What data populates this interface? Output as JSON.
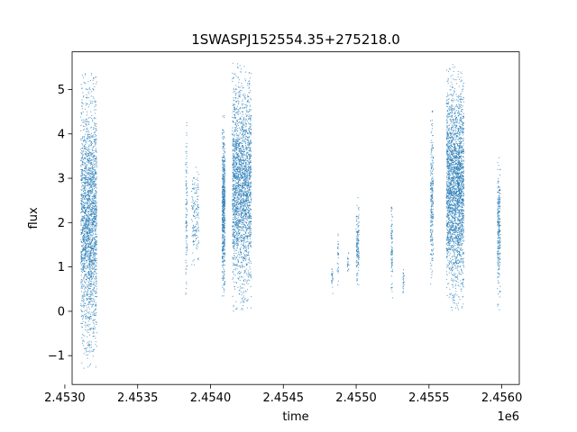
{
  "chart_data": {
    "type": "scatter",
    "title": "1SWASPJ152554.35+275218.0",
    "xlabel": "time",
    "ylabel": "flux",
    "x_offset_label": "1e6",
    "xlim": [
      2.45305,
      2.45612
    ],
    "ylim": [
      -1.65,
      5.85
    ],
    "x_ticks": [
      2.453,
      2.4535,
      2.454,
      2.4545,
      2.455,
      2.4555,
      2.456
    ],
    "x_tick_labels": [
      "2.4530",
      "2.4535",
      "2.4540",
      "2.4545",
      "2.4550",
      "2.4555",
      "2.4560"
    ],
    "y_ticks": [
      -1,
      0,
      1,
      2,
      3,
      4,
      5
    ],
    "y_tick_labels": [
      "−1",
      "0",
      "1",
      "2",
      "3",
      "4",
      "5"
    ],
    "grid": false,
    "marker_color": "#1f77b4",
    "series": [
      {
        "clusters": [
          {
            "x_start": 2.45311,
            "x_end": 2.45322,
            "y_min": -1.3,
            "y_max": 5.4,
            "n": 2200
          },
          {
            "x_start": 2.45383,
            "x_end": 2.45384,
            "y_min": 0.2,
            "y_max": 4.5,
            "n": 110
          },
          {
            "x_start": 2.45387,
            "x_end": 2.45392,
            "y_min": 0.8,
            "y_max": 3.4,
            "n": 160
          },
          {
            "x_start": 2.45408,
            "x_end": 2.4541,
            "y_min": 0.2,
            "y_max": 4.5,
            "n": 600
          },
          {
            "x_start": 2.45415,
            "x_end": 2.45428,
            "y_min": 0.0,
            "y_max": 5.6,
            "n": 2300
          },
          {
            "x_start": 2.45483,
            "x_end": 2.45484,
            "y_min": 0.4,
            "y_max": 1.1,
            "n": 25
          },
          {
            "x_start": 2.45487,
            "x_end": 2.45488,
            "y_min": 0.5,
            "y_max": 2.1,
            "n": 30
          },
          {
            "x_start": 2.45494,
            "x_end": 2.45495,
            "y_min": 0.7,
            "y_max": 1.4,
            "n": 20
          },
          {
            "x_start": 2.455,
            "x_end": 2.45502,
            "y_min": 0.5,
            "y_max": 2.6,
            "n": 140
          },
          {
            "x_start": 2.45524,
            "x_end": 2.45525,
            "y_min": 0.3,
            "y_max": 2.6,
            "n": 90
          },
          {
            "x_start": 2.45532,
            "x_end": 2.45533,
            "y_min": 0.3,
            "y_max": 1.1,
            "n": 25
          },
          {
            "x_start": 2.45551,
            "x_end": 2.45553,
            "y_min": 0.5,
            "y_max": 4.6,
            "n": 250
          },
          {
            "x_start": 2.45562,
            "x_end": 2.45574,
            "y_min": 0.0,
            "y_max": 5.6,
            "n": 2600
          },
          {
            "x_start": 2.45597,
            "x_end": 2.45599,
            "y_min": 0.0,
            "y_max": 3.6,
            "n": 260
          }
        ]
      }
    ]
  }
}
